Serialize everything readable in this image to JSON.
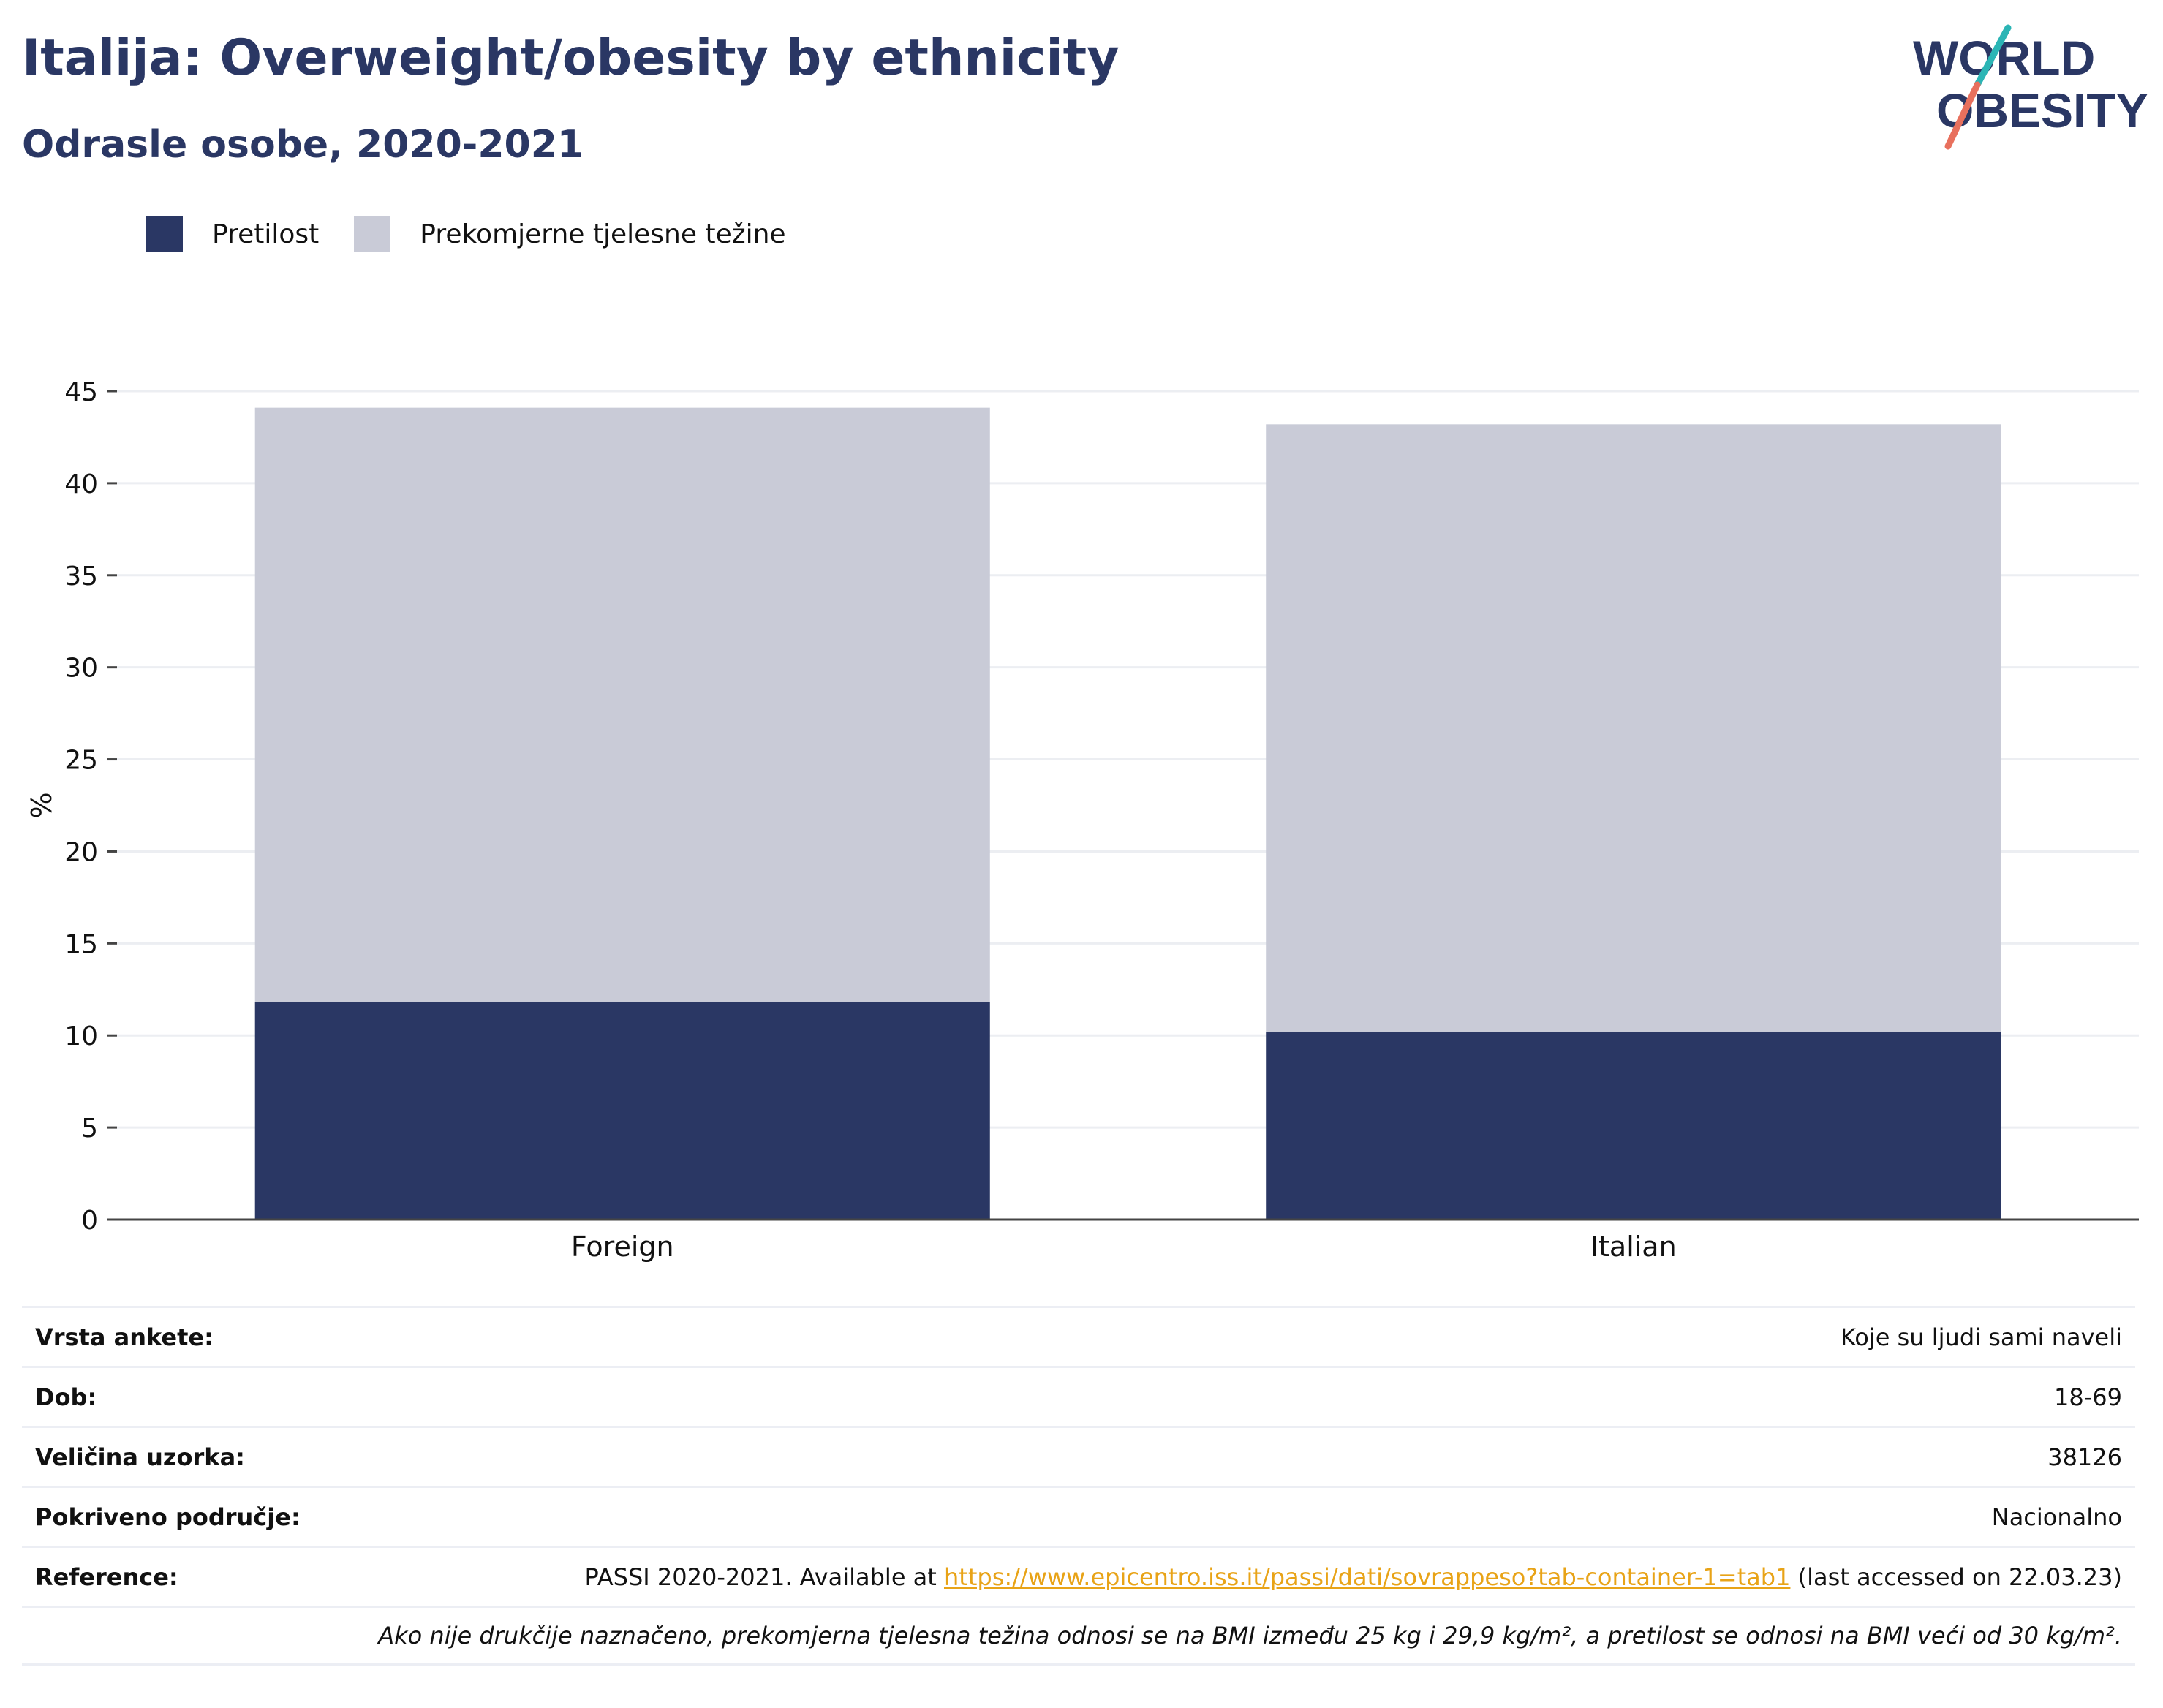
{
  "header": {
    "title": "Italija: Overweight/obesity by ethnicity",
    "subtitle": "Odrasle osobe, 2020-2021"
  },
  "logo": {
    "line1": "WORLD",
    "line2": "OBESITY"
  },
  "colors": {
    "obesity": "#2a3764",
    "overweight": "#c9cbd7",
    "accent_teal": "#2bb5b5",
    "accent_coral": "#e8705d",
    "link": "#e8a317"
  },
  "chart_data": {
    "type": "bar",
    "stacked": true,
    "categories": [
      "Foreign",
      "Italian"
    ],
    "series": [
      {
        "name": "Pretilost",
        "values": [
          11.8,
          10.2
        ]
      },
      {
        "name": "Prekomjerne tjelesne težine",
        "values": [
          32.3,
          33.0
        ]
      }
    ],
    "ylabel": "%",
    "ylim": [
      0,
      45
    ],
    "yticks": [
      0,
      5,
      10,
      15,
      20,
      25,
      30,
      35,
      40,
      45
    ],
    "grid": true,
    "legend_position": "top-left"
  },
  "info": {
    "rows": [
      {
        "key": "Vrsta ankete:",
        "value": "Koje su ljudi sami naveli"
      },
      {
        "key": "Dob:",
        "value": "18-69"
      },
      {
        "key": "Veličina uzorka:",
        "value": "38126"
      },
      {
        "key": "Pokriveno područje:",
        "value": "Nacionalno"
      }
    ],
    "reference": {
      "key": "Reference:",
      "prefix": "PASSI 2020-2021. Available at ",
      "link": "https://www.epicentro.iss.it/passi/dati/sovrappeso?tab-container-1=tab1",
      "suffix": " (last accessed on 22.03.23)"
    },
    "footnote": "Ako nije drukčije naznačeno, prekomjerna tjelesna težina odnosi se na BMI između 25 kg i 29,9 kg/m², a pretilost se odnosi na BMI veći od 30 kg/m²."
  }
}
